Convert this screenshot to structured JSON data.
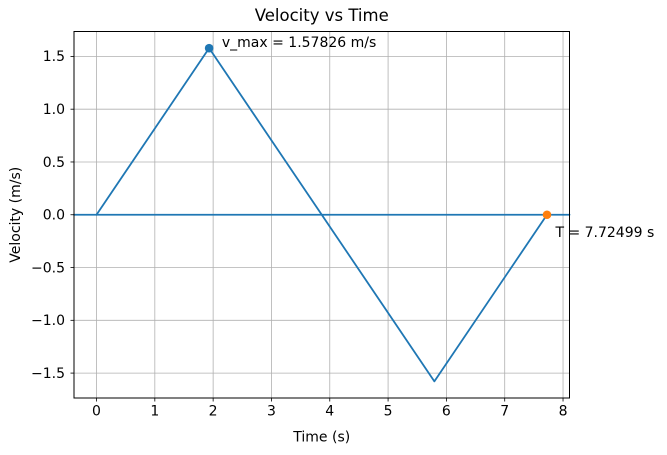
{
  "chart_data": {
    "type": "line",
    "title": "Velocity vs Time",
    "xlabel": "Time (s)",
    "ylabel": "Velocity (m/s)",
    "xlim": [
      -0.386,
      8.111
    ],
    "ylim": [
      -1.736,
      1.736
    ],
    "xticks": [
      0,
      1,
      2,
      3,
      4,
      5,
      6,
      7,
      8
    ],
    "xtick_labels": [
      "0",
      "1",
      "2",
      "3",
      "4",
      "5",
      "6",
      "7",
      "8"
    ],
    "yticks": [
      -1.5,
      -1.0,
      -0.5,
      0.0,
      0.5,
      1.0,
      1.5
    ],
    "ytick_labels": [
      "−1.5",
      "−1.0",
      "−0.5",
      "0.0",
      "0.5",
      "1.0",
      "1.5"
    ],
    "grid": true,
    "grid_color": "#b0b0b0",
    "axis_color": "#000000",
    "series": [
      {
        "name": "velocity-profile-line",
        "color": "#1f77b4",
        "x": [
          0,
          1.93125,
          5.79374,
          7.72499
        ],
        "y": [
          0,
          1.57826,
          -1.57826,
          0
        ]
      },
      {
        "name": "zero-velocity-line",
        "color": "#1f77b4",
        "x": [
          -0.386,
          8.111
        ],
        "y": [
          0,
          0
        ]
      }
    ],
    "markers": [
      {
        "name": "v-max-marker",
        "color": "#1f77b4",
        "x": 1.93125,
        "y": 1.57826
      },
      {
        "name": "period-marker",
        "color": "#ff7f0e",
        "x": 7.72499,
        "y": 0
      }
    ],
    "annotations": [
      {
        "name": "v-max-annotation",
        "text": "v_max = 1.57826 m/s",
        "x": 2.15,
        "y": 1.59
      },
      {
        "name": "period-annotation",
        "text": "T = 7.72499 s",
        "x": 7.87,
        "y": -0.21
      }
    ],
    "key_values": {
      "v_max_mps": 1.57826,
      "period_s": 7.72499
    }
  }
}
